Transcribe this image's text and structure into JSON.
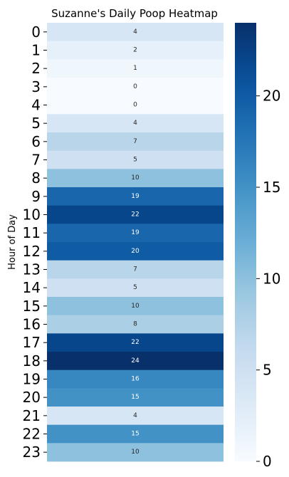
{
  "chart_data": {
    "type": "heatmap",
    "title": "Suzanne's Daily Poop Heatmap",
    "xlabel": "",
    "ylabel": "Hour of Day",
    "categories": [
      "0",
      "1",
      "2",
      "3",
      "4",
      "5",
      "6",
      "7",
      "8",
      "9",
      "10",
      "11",
      "12",
      "13",
      "14",
      "15",
      "16",
      "17",
      "18",
      "19",
      "20",
      "21",
      "22",
      "23"
    ],
    "values": [
      4,
      2,
      1,
      0,
      0,
      4,
      7,
      5,
      10,
      19,
      22,
      19,
      20,
      7,
      5,
      10,
      8,
      22,
      24,
      16,
      15,
      4,
      15,
      10
    ],
    "colormap": "Blues",
    "vmin": 0,
    "vmax": 24,
    "colorbar_ticks": [
      "0",
      "5",
      "10",
      "15",
      "20"
    ],
    "annotations": true
  }
}
